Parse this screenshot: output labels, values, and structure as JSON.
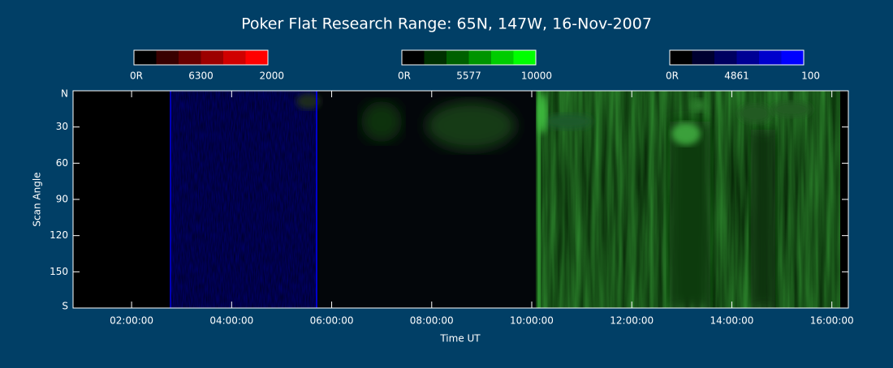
{
  "chart_data": {
    "type": "keogram",
    "title": "Poker Flat Research Range: 65N, 147W, 16-Nov-2007",
    "colorbars": [
      {
        "min_label": "0R",
        "wavelength": "6300",
        "max": 2000,
        "colors": [
          "#000000",
          "#380000",
          "#680000",
          "#9c0000",
          "#d00000",
          "#ff0000"
        ]
      },
      {
        "min_label": "0R",
        "wavelength": "5577",
        "max": 10000,
        "colors": [
          "#000000",
          "#003000",
          "#006000",
          "#009400",
          "#00cc00",
          "#00ff00"
        ]
      },
      {
        "min_label": "0R",
        "wavelength": "4861",
        "max": 100,
        "colors": [
          "#000000",
          "#000030",
          "#000060",
          "#000094",
          "#0000cc",
          "#0000ff"
        ]
      }
    ],
    "xlabel": "Time UT",
    "ylabel": "Scan Angle",
    "xlim": [
      0.83,
      16.33
    ],
    "xticks": [
      {
        "value": 2,
        "label": "02:00:00"
      },
      {
        "value": 4,
        "label": "04:00:00"
      },
      {
        "value": 6,
        "label": "06:00:00"
      },
      {
        "value": 8,
        "label": "08:00:00"
      },
      {
        "value": 10,
        "label": "10:00:00"
      },
      {
        "value": 12,
        "label": "12:00:00"
      },
      {
        "value": 14,
        "label": "14:00:00"
      },
      {
        "value": 16,
        "label": "16:00:00"
      }
    ],
    "ylim": [
      0,
      180
    ],
    "yticks": [
      {
        "value": 0,
        "label": "N"
      },
      30,
      60,
      90,
      120,
      150,
      {
        "value": 180,
        "label": "S"
      }
    ]
  }
}
